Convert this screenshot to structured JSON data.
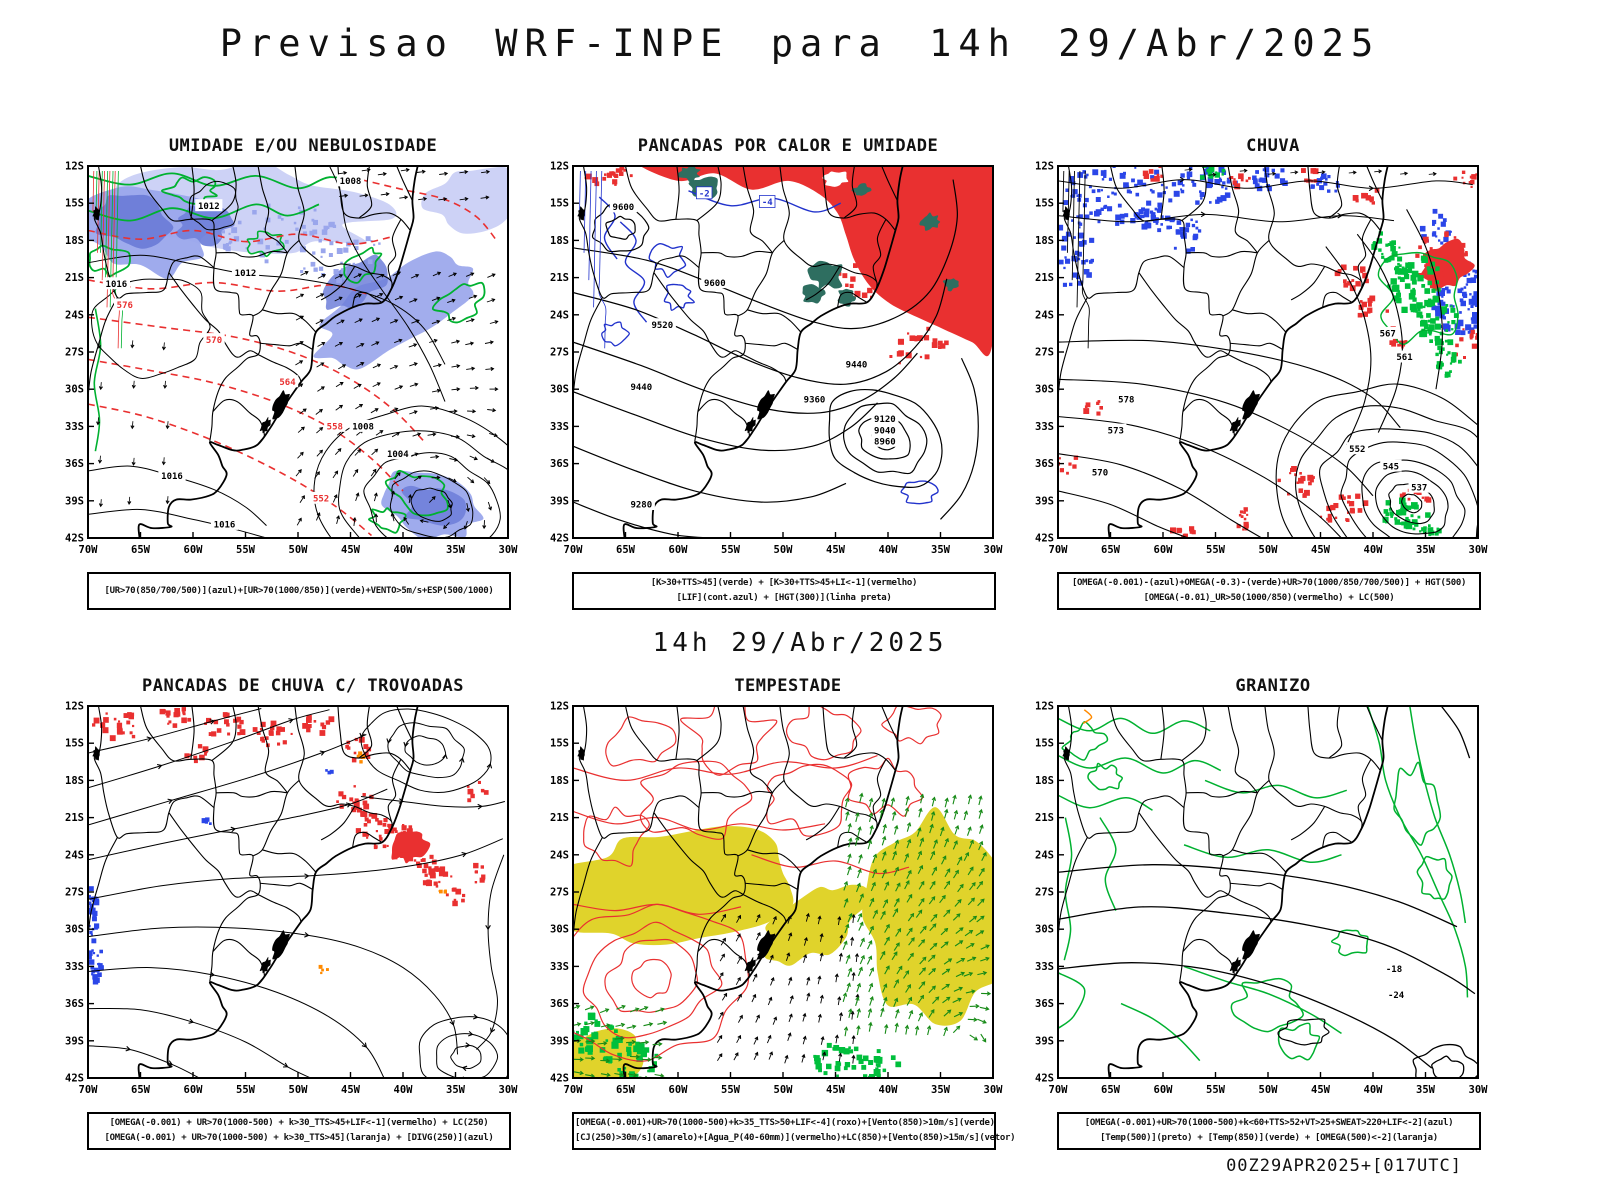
{
  "page": {
    "title": "Previsao WRF-INPE  para 14h 29/Abr/2025",
    "subtitle": "14h 29/Abr/2025",
    "footer": "00Z29APR2025+[017UTC]"
  },
  "axes": {
    "lat": [
      "12S",
      "15S",
      "18S",
      "21S",
      "24S",
      "27S",
      "30S",
      "33S",
      "36S",
      "39S",
      "42S"
    ],
    "lon": [
      "70W",
      "65W",
      "60W",
      "55W",
      "50W",
      "45W",
      "40W",
      "35W",
      "30W"
    ]
  },
  "colors": {
    "red": "#e93030",
    "orange": "#ff8a00",
    "teal": "#2e6e60",
    "blue": "#2233cc",
    "bluef": "#2b46e8",
    "green": "#00b130",
    "greenf": "#00bf3c",
    "greena": "#168a16",
    "shade1": "#cad0f5",
    "shade2": "#9aa6ec",
    "shade3": "#6f7fd9",
    "yellow": "#e0d32b",
    "black": "#000000"
  },
  "panels": [
    {
      "key": "umidade",
      "title": "UMIDADE E/OU NEBULOSIDADE",
      "caption": [
        "[UR>70(850/700/500)](azul)+[UR>70(1000/850)](verde)+VENTO>5m/s+ESP(500/1000)"
      ],
      "map_labels": [
        {
          "t": "1008",
          "lon": 45,
          "lat": 13.2,
          "c": "black"
        },
        {
          "t": "1012",
          "lon": 58.5,
          "lat": 15.2,
          "c": "black"
        },
        {
          "t": "1016",
          "lon": 67.3,
          "lat": 21.5,
          "c": "black"
        },
        {
          "t": "1012",
          "lon": 55,
          "lat": 20.6,
          "c": "black"
        },
        {
          "t": "1016",
          "lon": 62,
          "lat": 37,
          "c": "black"
        },
        {
          "t": "1016",
          "lon": 57,
          "lat": 40.9,
          "c": "black"
        },
        {
          "t": "1008",
          "lon": 43.8,
          "lat": 33,
          "c": "black"
        },
        {
          "t": "1004",
          "lon": 40.5,
          "lat": 35.2,
          "c": "black"
        },
        {
          "t": "576",
          "lon": 66.5,
          "lat": 23.2,
          "c": "red"
        },
        {
          "t": "570",
          "lon": 58,
          "lat": 26,
          "c": "red"
        },
        {
          "t": "564",
          "lon": 51,
          "lat": 29.4,
          "c": "red"
        },
        {
          "t": "558",
          "lon": 46.5,
          "lat": 33,
          "c": "red"
        },
        {
          "t": "552",
          "lon": 47.8,
          "lat": 38.8,
          "c": "red"
        }
      ]
    },
    {
      "key": "pancadas-calor",
      "title": "PANCADAS POR CALOR E UMIDADE",
      "caption": [
        "[K>30+TTS>45](verde) + [K>30+TTS>45+LI<-1](vermelho)",
        "[LIF](cont.azul) + [HGT(300)](linha preta)"
      ],
      "map_labels": [
        {
          "t": "9600",
          "lon": 65.2,
          "lat": 15.3,
          "c": "black"
        },
        {
          "t": "9600",
          "lon": 56.5,
          "lat": 21.4,
          "c": "black"
        },
        {
          "t": "9520",
          "lon": 61.5,
          "lat": 24.8,
          "c": "black"
        },
        {
          "t": "9440",
          "lon": 63.5,
          "lat": 29.8,
          "c": "black"
        },
        {
          "t": "9440",
          "lon": 43,
          "lat": 28,
          "c": "black"
        },
        {
          "t": "9360",
          "lon": 47,
          "lat": 30.8,
          "c": "black"
        },
        {
          "t": "9280",
          "lon": 63.5,
          "lat": 39.3,
          "c": "black"
        },
        {
          "t": "9120",
          "lon": 40.3,
          "lat": 32.4,
          "c": "black"
        },
        {
          "t": "9040",
          "lon": 40.3,
          "lat": 33.3,
          "c": "black"
        },
        {
          "t": "8960",
          "lon": 40.3,
          "lat": 34.2,
          "c": "black"
        },
        {
          "t": "-2",
          "lon": 57.5,
          "lat": 14.2,
          "c": "blue"
        },
        {
          "t": "-4",
          "lon": 51.5,
          "lat": 14.9,
          "c": "blue"
        }
      ]
    },
    {
      "key": "chuva",
      "title": "CHUVA",
      "caption": [
        "[OMEGA(-0.001)-(azul)+OMEGA(-0.3)-(verde)+UR>70(1000/850/700/500)] + HGT(500)",
        "[OMEGA(-0.01)_UR>50(1000/850)(vermelho) + LC(500)"
      ],
      "map_labels": [
        {
          "t": "578",
          "lon": 63.5,
          "lat": 30.8,
          "c": "black"
        },
        {
          "t": "573",
          "lon": 64.5,
          "lat": 33.3,
          "c": "black"
        },
        {
          "t": "570",
          "lon": 66,
          "lat": 36.7,
          "c": "black"
        },
        {
          "t": "567",
          "lon": 38.6,
          "lat": 25.5,
          "c": "black"
        },
        {
          "t": "561",
          "lon": 37,
          "lat": 27.4,
          "c": "black"
        },
        {
          "t": "552",
          "lon": 41.5,
          "lat": 34.8,
          "c": "black"
        },
        {
          "t": "545",
          "lon": 38.3,
          "lat": 36.2,
          "c": "black"
        },
        {
          "t": "537",
          "lon": 35.6,
          "lat": 37.9,
          "c": "black"
        }
      ]
    },
    {
      "key": "trovoadas",
      "title": "PANCADAS DE CHUVA C/ TROVOADAS",
      "caption": [
        "[OMEGA(-0.001) + UR>70(1000-500) + k>30_TTS>45+LIF<-1](vermelho) + LC(250)",
        "[OMEGA(-0.001) + UR>70(1000-500) + k>30_TTS>45](laranja) + [DIVG(250)](azul)"
      ],
      "map_labels": []
    },
    {
      "key": "tempestade",
      "title": "TEMPESTADE",
      "caption": [
        "[OMEGA(-0.001)+UR>70(1000-500)+k>35_TTS>50+LIF<-4](roxo)+[Vento(850)>10m/s](verde)",
        "[CJ(250)>30m/s](amarelo)+[Agua_P(40-60mm)](vermelho)+LC(850)+[Vento(850)>15m/s](vetor)"
      ],
      "map_labels": []
    },
    {
      "key": "granizo",
      "title": "GRANIZO",
      "caption": [
        "[OMEGA(-0.001)+UR>70(1000-500)+k<60+TTS>52+VT>25+SWEAT>220+LIF<-2](azul)",
        "[Temp(500)](preto) + [Temp(850)](verde) + [OMEGA(500)<-2](laranja)"
      ],
      "map_labels": [
        {
          "t": "-18",
          "lon": 38,
          "lat": 33.2,
          "c": "black"
        },
        {
          "t": "-24",
          "lon": 37.8,
          "lat": 35.3,
          "c": "black"
        }
      ]
    }
  ]
}
